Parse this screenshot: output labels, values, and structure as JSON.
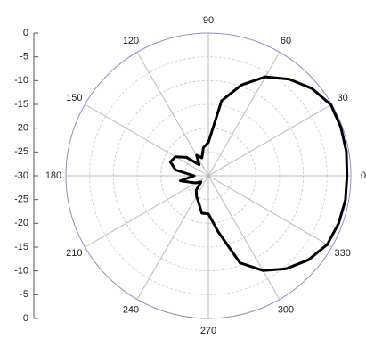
{
  "chart_data": {
    "type": "polar",
    "theta": [
      0,
      10,
      20,
      30,
      40,
      50,
      60,
      70,
      80,
      90,
      100,
      110,
      120,
      130,
      140,
      150,
      160,
      170,
      180,
      190,
      200,
      210,
      220,
      230,
      240,
      250,
      260,
      270,
      280,
      290,
      300,
      310,
      320,
      330,
      340,
      350
    ],
    "r": [
      -0.8,
      -0.5,
      -0.3,
      -0.2,
      -1.5,
      -3.5,
      -6,
      -9.7,
      -14,
      -23,
      -24,
      -26,
      -25,
      -27,
      -24,
      -22,
      -21.5,
      -23,
      -27,
      -24,
      -26,
      -27,
      -28,
      -26,
      -25,
      -24,
      -22,
      -22,
      -18,
      -10.5,
      -7,
      -4.5,
      -2.5,
      -1.1,
      -0.8,
      -0.7
    ],
    "color": "#000000",
    "rlim": [
      -30,
      0
    ],
    "rticks": [
      -30,
      -25,
      -20,
      -15,
      -10,
      -5,
      0
    ],
    "thetaticks": [
      0,
      30,
      60,
      90,
      120,
      150,
      180,
      210,
      240,
      270,
      300,
      330
    ],
    "grid": true
  }
}
